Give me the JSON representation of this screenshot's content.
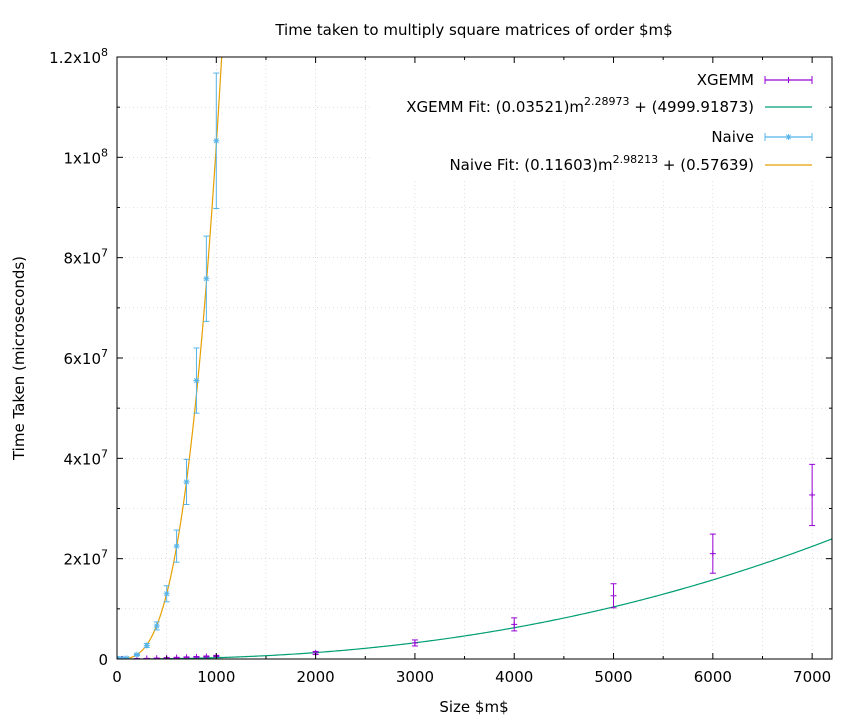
{
  "chart_data": {
    "type": "scatter",
    "title": "Time taken to multiply square matrices of order $m$",
    "xlabel": "Size $m$",
    "ylabel": "Time Taken (microseconds)",
    "xlim": [
      0,
      7200
    ],
    "ylim": [
      0,
      120000000
    ],
    "grid": true,
    "legend_position": "top-right",
    "x_ticks": [
      {
        "value": 0,
        "label": "0"
      },
      {
        "value": 1000,
        "label": "1000"
      },
      {
        "value": 2000,
        "label": "2000"
      },
      {
        "value": 3000,
        "label": "3000"
      },
      {
        "value": 4000,
        "label": "4000"
      },
      {
        "value": 5000,
        "label": "5000"
      },
      {
        "value": 6000,
        "label": "6000"
      },
      {
        "value": 7000,
        "label": "7000"
      }
    ],
    "y_ticks": [
      {
        "value": 0,
        "base": "0",
        "exp": ""
      },
      {
        "value": 20000000,
        "base": "2x10",
        "exp": "7"
      },
      {
        "value": 40000000,
        "base": "4x10",
        "exp": "7"
      },
      {
        "value": 60000000,
        "base": "6x10",
        "exp": "7"
      },
      {
        "value": 80000000,
        "base": "8x10",
        "exp": "7"
      },
      {
        "value": 100000000,
        "base": "1x10",
        "exp": "8"
      },
      {
        "value": 120000000,
        "base": "1.2x10",
        "exp": "8"
      }
    ],
    "series": [
      {
        "name": "XGEMM",
        "style": "points-errorbars",
        "color": "#9400d3",
        "points": [
          {
            "x": 10,
            "y": 5000,
            "err": 2000
          },
          {
            "x": 50,
            "y": 10000,
            "err": 4000
          },
          {
            "x": 100,
            "y": 25000,
            "err": 8000
          },
          {
            "x": 200,
            "y": 60000,
            "err": 15000
          },
          {
            "x": 300,
            "y": 100000,
            "err": 25000
          },
          {
            "x": 400,
            "y": 150000,
            "err": 40000
          },
          {
            "x": 500,
            "y": 220000,
            "err": 50000
          },
          {
            "x": 600,
            "y": 280000,
            "err": 60000
          },
          {
            "x": 700,
            "y": 350000,
            "err": 70000
          },
          {
            "x": 800,
            "y": 420000,
            "err": 80000
          },
          {
            "x": 900,
            "y": 500000,
            "err": 100000
          },
          {
            "x": 1000,
            "y": 600000,
            "err": 120000
          },
          {
            "x": 2000,
            "y": 1200000,
            "err": 300000
          },
          {
            "x": 3000,
            "y": 3200000,
            "err": 600000
          },
          {
            "x": 4000,
            "y": 6900000,
            "err": 1300000
          },
          {
            "x": 5000,
            "y": 12600000,
            "err": 2400000
          },
          {
            "x": 6000,
            "y": 21000000,
            "err": 3900000
          },
          {
            "x": 7000,
            "y": 32700000,
            "err": 6100000
          }
        ]
      },
      {
        "name": "XGEMM Fit: (0.03521)m",
        "name_exp": "2.28973",
        "name_tail": " + (4999.91873)",
        "style": "line",
        "color": "#009e73",
        "fit": {
          "a": 0.03521,
          "b": 2.28973,
          "c": 4999.91873
        }
      },
      {
        "name": "Naive",
        "style": "points-errorbars",
        "color": "#56b4e9",
        "points": [
          {
            "x": 10,
            "y": 100,
            "err": 50
          },
          {
            "x": 20,
            "y": 900,
            "err": 300
          },
          {
            "x": 40,
            "y": 7000,
            "err": 2000
          },
          {
            "x": 60,
            "y": 25000,
            "err": 8000
          },
          {
            "x": 80,
            "y": 55000,
            "err": 15000
          },
          {
            "x": 100,
            "y": 110000,
            "err": 25000
          },
          {
            "x": 200,
            "y": 850000,
            "err": 150000
          },
          {
            "x": 300,
            "y": 2700000,
            "err": 400000
          },
          {
            "x": 400,
            "y": 6600000,
            "err": 800000
          },
          {
            "x": 500,
            "y": 13000000,
            "err": 1600000
          },
          {
            "x": 600,
            "y": 22500000,
            "err": 3200000
          },
          {
            "x": 700,
            "y": 35300000,
            "err": 4500000
          },
          {
            "x": 800,
            "y": 55500000,
            "err": 6500000
          },
          {
            "x": 900,
            "y": 75800000,
            "err": 8500000
          },
          {
            "x": 1000,
            "y": 103300000,
            "err": 13500000
          }
        ]
      },
      {
        "name": "Naive Fit: (0.11603)m",
        "name_exp": "2.98213",
        "name_tail": " + (0.57639)",
        "style": "line",
        "color": "#e69f00",
        "fit": {
          "a": 0.11603,
          "b": 2.98213,
          "c": 0.57639
        }
      }
    ]
  }
}
